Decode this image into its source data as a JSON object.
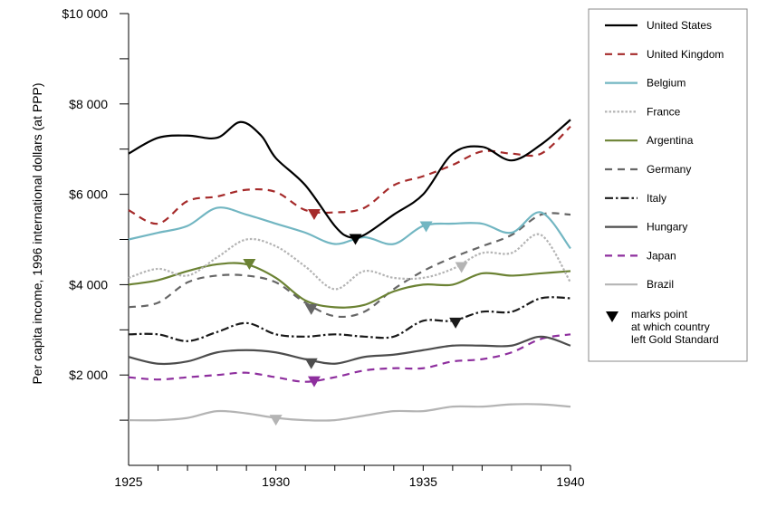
{
  "chart_data": {
    "type": "line",
    "title": "",
    "xlabel": "",
    "ylabel": "Per capita income, 1996 international dollars (at PPP)",
    "xlim": [
      1925,
      1940
    ],
    "ylim": [
      0,
      10000
    ],
    "x_ticks": [
      1925,
      1930,
      1935,
      1940
    ],
    "x_tick_labels": [
      "1925",
      "1930",
      "1935",
      "1940"
    ],
    "y_ticks": [
      2000,
      4000,
      6000,
      8000,
      10000
    ],
    "y_tick_labels": [
      "$2 000",
      "$4 000",
      "$6 000",
      "$8 000",
      "$10 000"
    ],
    "grid": false,
    "legend_position": "right",
    "series": [
      {
        "name": "United States",
        "color": "#000000",
        "dash": "solid",
        "x": [
          1925,
          1926,
          1927,
          1928,
          1928.8,
          1929.5,
          1930,
          1931,
          1932,
          1932.5,
          1933,
          1934,
          1935,
          1936,
          1937,
          1938,
          1939,
          1940
        ],
        "values": [
          6900,
          7250,
          7300,
          7250,
          7600,
          7300,
          6800,
          6200,
          5300,
          5050,
          5100,
          5550,
          6000,
          6900,
          7050,
          6750,
          7100,
          7650
        ],
        "gold_exit": {
          "year": 1932.7,
          "value": 5000
        }
      },
      {
        "name": "United Kingdom",
        "color": "#a52a2a",
        "dash": "dashed",
        "x": [
          1925,
          1926,
          1927,
          1928,
          1929,
          1930,
          1931,
          1932,
          1933,
          1934,
          1935,
          1936,
          1937,
          1938,
          1939,
          1940
        ],
        "values": [
          5650,
          5350,
          5850,
          5950,
          6100,
          6050,
          5650,
          5600,
          5700,
          6200,
          6400,
          6650,
          6950,
          6900,
          6900,
          7500
        ],
        "gold_exit": {
          "year": 1931.3,
          "value": 5550
        }
      },
      {
        "name": "Belgium",
        "color": "#72b6c2",
        "dash": "solid",
        "x": [
          1925,
          1926,
          1927,
          1928,
          1929,
          1930,
          1931,
          1932,
          1933,
          1934,
          1935,
          1936,
          1937,
          1938,
          1939,
          1940
        ],
        "values": [
          5000,
          5150,
          5300,
          5700,
          5550,
          5350,
          5150,
          4900,
          5050,
          4900,
          5300,
          5350,
          5350,
          5150,
          5600,
          4800
        ],
        "gold_exit": {
          "year": 1935.1,
          "value": 5280
        }
      },
      {
        "name": "France",
        "color": "#b4b4b4",
        "dash": "dotted",
        "x": [
          1925,
          1926,
          1927,
          1928,
          1929,
          1930,
          1931,
          1932,
          1933,
          1934,
          1935,
          1936,
          1937,
          1938,
          1939,
          1940
        ],
        "values": [
          4150,
          4350,
          4200,
          4600,
          5000,
          4850,
          4400,
          3900,
          4300,
          4150,
          4150,
          4350,
          4700,
          4700,
          5100,
          4050
        ],
        "gold_exit": {
          "year": 1936.3,
          "value": 4380
        }
      },
      {
        "name": "Argentina",
        "color": "#6b8233",
        "dash": "solid",
        "x": [
          1925,
          1926,
          1927,
          1928,
          1929,
          1930,
          1931,
          1932,
          1933,
          1934,
          1935,
          1936,
          1937,
          1938,
          1939,
          1940
        ],
        "values": [
          4000,
          4100,
          4300,
          4450,
          4450,
          4150,
          3650,
          3500,
          3550,
          3850,
          4000,
          4000,
          4250,
          4200,
          4250,
          4300
        ],
        "gold_exit": {
          "year": 1929.1,
          "value": 4450
        }
      },
      {
        "name": "Germany",
        "color": "#666666",
        "dash": "dashed",
        "x": [
          1925,
          1926,
          1927,
          1928,
          1929,
          1930,
          1931,
          1932,
          1933,
          1934,
          1935,
          1936,
          1937,
          1938,
          1939,
          1940
        ],
        "values": [
          3500,
          3600,
          4050,
          4200,
          4200,
          4050,
          3600,
          3300,
          3400,
          3900,
          4300,
          4600,
          4850,
          5100,
          5550,
          5550
        ],
        "gold_exit": {
          "year": 1931.2,
          "value": 3450
        }
      },
      {
        "name": "Italy",
        "color": "#1a1a1a",
        "dash": "dashdot",
        "x": [
          1925,
          1926,
          1927,
          1928,
          1929,
          1930,
          1931,
          1932,
          1933,
          1934,
          1935,
          1936,
          1937,
          1938,
          1939,
          1940
        ],
        "values": [
          2900,
          2900,
          2750,
          2950,
          3150,
          2900,
          2850,
          2900,
          2850,
          2850,
          3200,
          3200,
          3400,
          3400,
          3700,
          3700
        ],
        "gold_exit": {
          "year": 1936.1,
          "value": 3150
        }
      },
      {
        "name": "Hungary",
        "color": "#4d4d4d",
        "dash": "solid",
        "x": [
          1925,
          1926,
          1927,
          1928,
          1929,
          1930,
          1931,
          1932,
          1933,
          1934,
          1935,
          1936,
          1937,
          1938,
          1939,
          1940
        ],
        "values": [
          2400,
          2250,
          2300,
          2500,
          2550,
          2500,
          2350,
          2250,
          2400,
          2450,
          2550,
          2650,
          2650,
          2650,
          2850,
          2650
        ],
        "gold_exit": {
          "year": 1931.2,
          "value": 2250
        }
      },
      {
        "name": "Japan",
        "color": "#8e2f9e",
        "dash": "dashed",
        "x": [
          1925,
          1926,
          1927,
          1928,
          1929,
          1930,
          1931,
          1932,
          1933,
          1934,
          1935,
          1936,
          1937,
          1938,
          1939,
          1940
        ],
        "values": [
          1950,
          1900,
          1950,
          2000,
          2050,
          1950,
          1850,
          1950,
          2100,
          2150,
          2150,
          2300,
          2350,
          2500,
          2800,
          2900
        ],
        "gold_exit": {
          "year": 1931.3,
          "value": 1850
        }
      },
      {
        "name": "Brazil",
        "color": "#b4b4b4",
        "dash": "solid",
        "x": [
          1925,
          1926,
          1927,
          1928,
          1929,
          1930,
          1931,
          1932,
          1933,
          1934,
          1935,
          1936,
          1937,
          1938,
          1939,
          1940
        ],
        "values": [
          1000,
          1000,
          1050,
          1200,
          1150,
          1050,
          1000,
          1000,
          1100,
          1200,
          1200,
          1300,
          1300,
          1350,
          1350,
          1300
        ],
        "gold_exit": {
          "year": 1930,
          "value": 1000
        }
      }
    ],
    "legend_marker_label": "marks point at which country left Gold Standard",
    "legend_marker_lines": [
      "marks point",
      "at which country",
      "left Gold Standard"
    ]
  }
}
